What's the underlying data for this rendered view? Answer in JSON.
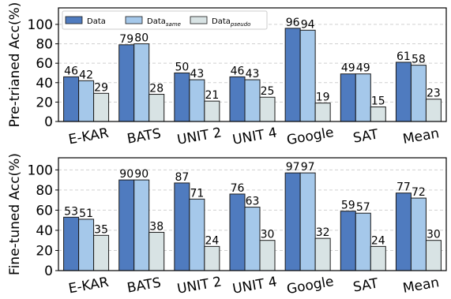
{
  "colors": {
    "Data": "#4f7bbf",
    "Data_same": "#a5c8ea",
    "Data_pseudo": "#d8e3e4",
    "grid": "#d0d0d0",
    "edge": "#1a1a1a"
  },
  "legend": {
    "placement": "top-left",
    "items": [
      {
        "base": "Data",
        "sub": ""
      },
      {
        "base": "Data",
        "sub": "same"
      },
      {
        "base": "Data",
        "sub": "pseudo"
      }
    ]
  },
  "chart_data": [
    {
      "type": "bar",
      "ylabel": "Pre-trianed Acc(%)",
      "ylim": [
        0,
        117
      ],
      "yticks": [
        0,
        20,
        40,
        60,
        80,
        100
      ],
      "grid": true,
      "categories": [
        "E-KAR",
        "BATS",
        "UNIT 2",
        "UNIT 4",
        "Google",
        "SAT",
        "Mean"
      ],
      "series": [
        {
          "key": "Data",
          "values": [
            46,
            79,
            50,
            46,
            96,
            49,
            61
          ],
          "labels": [
            "46",
            "79",
            "50",
            "46",
            "96",
            "49",
            "61"
          ]
        },
        {
          "key": "Data_same",
          "values": [
            42,
            80,
            43,
            43,
            94,
            49,
            58
          ],
          "labels": [
            "42",
            "80",
            "43",
            "43",
            "94",
            "49",
            "58"
          ]
        },
        {
          "key": "Data_pseudo",
          "values": [
            29,
            28,
            21,
            25,
            19,
            15,
            23
          ],
          "labels": [
            "29",
            "28",
            "21",
            "25",
            "19",
            "15",
            "23"
          ]
        }
      ]
    },
    {
      "type": "bar",
      "ylabel": "Fine-tuned Acc(%)",
      "ylim": [
        0,
        112
      ],
      "yticks": [
        0,
        20,
        40,
        60,
        80,
        100
      ],
      "grid": true,
      "categories": [
        "E-KAR",
        "BATS",
        "UNIT 2",
        "UNIT 4",
        "Google",
        "SAT",
        "Mean"
      ],
      "series": [
        {
          "key": "Data",
          "values": [
            53,
            90,
            87,
            76,
            97,
            59,
            77
          ],
          "labels": [
            "53",
            "90",
            "87",
            "76",
            "97",
            "59",
            "77"
          ]
        },
        {
          "key": "Data_same",
          "values": [
            51,
            90,
            71,
            63,
            97,
            57,
            72
          ],
          "labels": [
            "51",
            "90",
            "71",
            "63",
            "97",
            "57",
            "72"
          ]
        },
        {
          "key": "Data_pseudo",
          "values": [
            35,
            38,
            24,
            30,
            32,
            24,
            30
          ],
          "labels": [
            "35",
            "38",
            "24",
            "30",
            "32",
            "24",
            "30"
          ]
        }
      ]
    }
  ]
}
